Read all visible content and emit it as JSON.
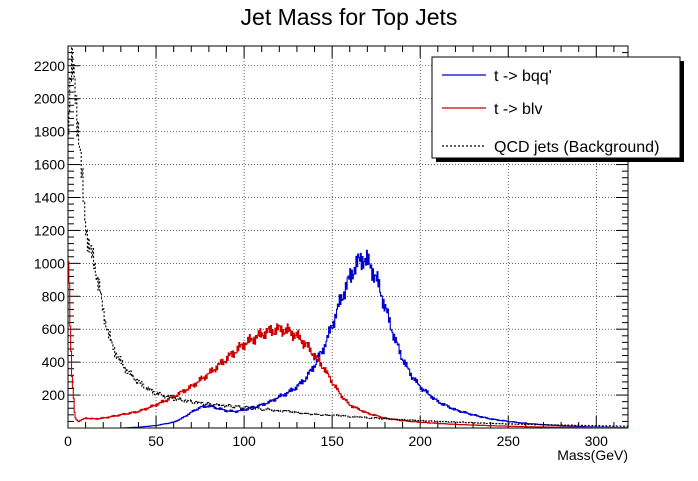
{
  "chart_data": {
    "type": "line",
    "title": "Jet Mass for Top Jets",
    "xlabel": "Mass(GeV)",
    "ylabel": "",
    "xlim": [
      0,
      318
    ],
    "ylim": [
      0,
      2320
    ],
    "xticks": [
      0,
      50,
      100,
      150,
      200,
      250,
      300
    ],
    "yticks": [
      200,
      400,
      600,
      800,
      1000,
      1200,
      1400,
      1600,
      1800,
      2000,
      2200
    ],
    "grid": true,
    "legend_position": "top-right",
    "series": [
      {
        "name": "t -> bqq'",
        "color": "#0000cc",
        "style": "solid",
        "x": [
          0,
          5,
          10,
          20,
          30,
          40,
          50,
          60,
          65,
          70,
          75,
          80,
          85,
          90,
          95,
          100,
          105,
          110,
          115,
          120,
          125,
          130,
          135,
          140,
          145,
          150,
          155,
          160,
          163,
          166,
          168,
          170,
          173,
          176,
          180,
          185,
          190,
          195,
          200,
          210,
          220,
          230,
          240,
          250,
          260,
          270,
          280,
          290,
          300,
          310,
          318
        ],
        "y": [
          0,
          0,
          0,
          0,
          0,
          5,
          15,
          35,
          60,
          95,
          125,
          135,
          120,
          105,
          100,
          110,
          125,
          140,
          160,
          190,
          215,
          250,
          300,
          380,
          480,
          620,
          780,
          910,
          980,
          1020,
          1030,
          1010,
          960,
          880,
          740,
          560,
          420,
          320,
          250,
          160,
          110,
          80,
          55,
          40,
          28,
          20,
          14,
          9,
          6,
          4,
          3
        ]
      },
      {
        "name": "t -> blv",
        "color": "#cc0000",
        "style": "solid",
        "x": [
          0,
          2,
          4,
          6,
          8,
          10,
          15,
          20,
          30,
          40,
          50,
          60,
          70,
          80,
          90,
          100,
          110,
          115,
          120,
          125,
          130,
          135,
          140,
          145,
          150,
          155,
          160,
          170,
          180,
          190,
          200,
          210,
          220,
          230,
          240,
          250,
          260,
          270,
          280,
          290,
          300,
          310,
          318
        ],
        "y": [
          1180,
          350,
          60,
          40,
          50,
          60,
          55,
          60,
          80,
          100,
          140,
          190,
          250,
          330,
          420,
          510,
          570,
          590,
          600,
          590,
          560,
          510,
          440,
          370,
          280,
          200,
          140,
          90,
          60,
          45,
          35,
          28,
          22,
          18,
          14,
          11,
          8,
          6,
          5,
          4,
          3,
          2,
          2
        ]
      },
      {
        "name": "QCD jets (Background)",
        "color": "#000000",
        "style": "dashed",
        "x": [
          0,
          2,
          4,
          6,
          8,
          10,
          12,
          15,
          18,
          20,
          25,
          30,
          35,
          40,
          45,
          50,
          60,
          70,
          80,
          90,
          100,
          110,
          120,
          130,
          140,
          150,
          160,
          170,
          180,
          190,
          200,
          210,
          220,
          230,
          240,
          250,
          260,
          270,
          280,
          290,
          300,
          310,
          318
        ],
        "y": [
          1800,
          2200,
          2100,
          1800,
          1500,
          1250,
          1100,
          1000,
          850,
          700,
          500,
          400,
          330,
          280,
          240,
          210,
          180,
          160,
          145,
          135,
          125,
          115,
          105,
          95,
          85,
          78,
          70,
          63,
          56,
          50,
          45,
          40,
          36,
          32,
          28,
          25,
          22,
          20,
          18,
          16,
          14,
          12,
          11
        ]
      }
    ]
  }
}
